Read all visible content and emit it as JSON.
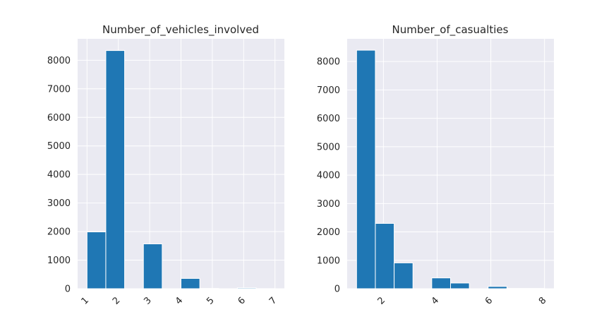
{
  "chart_data": [
    {
      "type": "bar",
      "title": "Number_of_vehicles_involved",
      "xlabel": "",
      "ylabel": "",
      "xlim": [
        0.7,
        7.3
      ],
      "ylim": [
        0,
        8750
      ],
      "grid": true,
      "x_ticks": [
        1,
        2,
        3,
        4,
        5,
        6,
        7
      ],
      "y_ticks": [
        0,
        1000,
        2000,
        3000,
        4000,
        5000,
        6000,
        7000,
        8000
      ],
      "bins": [
        {
          "x0": 1.0,
          "x1": 1.6,
          "value": 1990
        },
        {
          "x0": 1.6,
          "x1": 2.2,
          "value": 8340
        },
        {
          "x0": 2.2,
          "x1": 2.8,
          "value": 0
        },
        {
          "x0": 2.8,
          "x1": 3.4,
          "value": 1570
        },
        {
          "x0": 3.4,
          "x1": 4.0,
          "value": 0
        },
        {
          "x0": 4.0,
          "x1": 4.6,
          "value": 360
        },
        {
          "x0": 4.6,
          "x1": 5.2,
          "value": 10
        },
        {
          "x0": 5.2,
          "x1": 5.8,
          "value": 0
        },
        {
          "x0": 5.8,
          "x1": 6.4,
          "value": 30
        },
        {
          "x0": 6.4,
          "x1": 7.0,
          "value": 5
        }
      ]
    },
    {
      "type": "bar",
      "title": "Number_of_casualties",
      "xlabel": "",
      "ylabel": "",
      "xlim": [
        0.65,
        8.35
      ],
      "ylim": [
        0,
        8800
      ],
      "grid": true,
      "x_ticks": [
        2,
        4,
        6,
        8
      ],
      "y_ticks": [
        0,
        1000,
        2000,
        3000,
        4000,
        5000,
        6000,
        7000,
        8000
      ],
      "bins": [
        {
          "x0": 1.0,
          "x1": 1.7,
          "value": 8400
        },
        {
          "x0": 1.7,
          "x1": 2.4,
          "value": 2300
        },
        {
          "x0": 2.4,
          "x1": 3.1,
          "value": 910
        },
        {
          "x0": 3.1,
          "x1": 3.8,
          "value": 0
        },
        {
          "x0": 3.8,
          "x1": 4.5,
          "value": 380
        },
        {
          "x0": 4.5,
          "x1": 5.2,
          "value": 200
        },
        {
          "x0": 5.2,
          "x1": 5.9,
          "value": 0
        },
        {
          "x0": 5.9,
          "x1": 6.6,
          "value": 80
        },
        {
          "x0": 6.6,
          "x1": 7.3,
          "value": 10
        },
        {
          "x0": 7.3,
          "x1": 8.0,
          "value": 10
        }
      ]
    }
  ],
  "colors": {
    "bar": "#1f77b4",
    "plot_background": "#eaeaf2",
    "grid": "#ffffff",
    "text": "#262626"
  }
}
